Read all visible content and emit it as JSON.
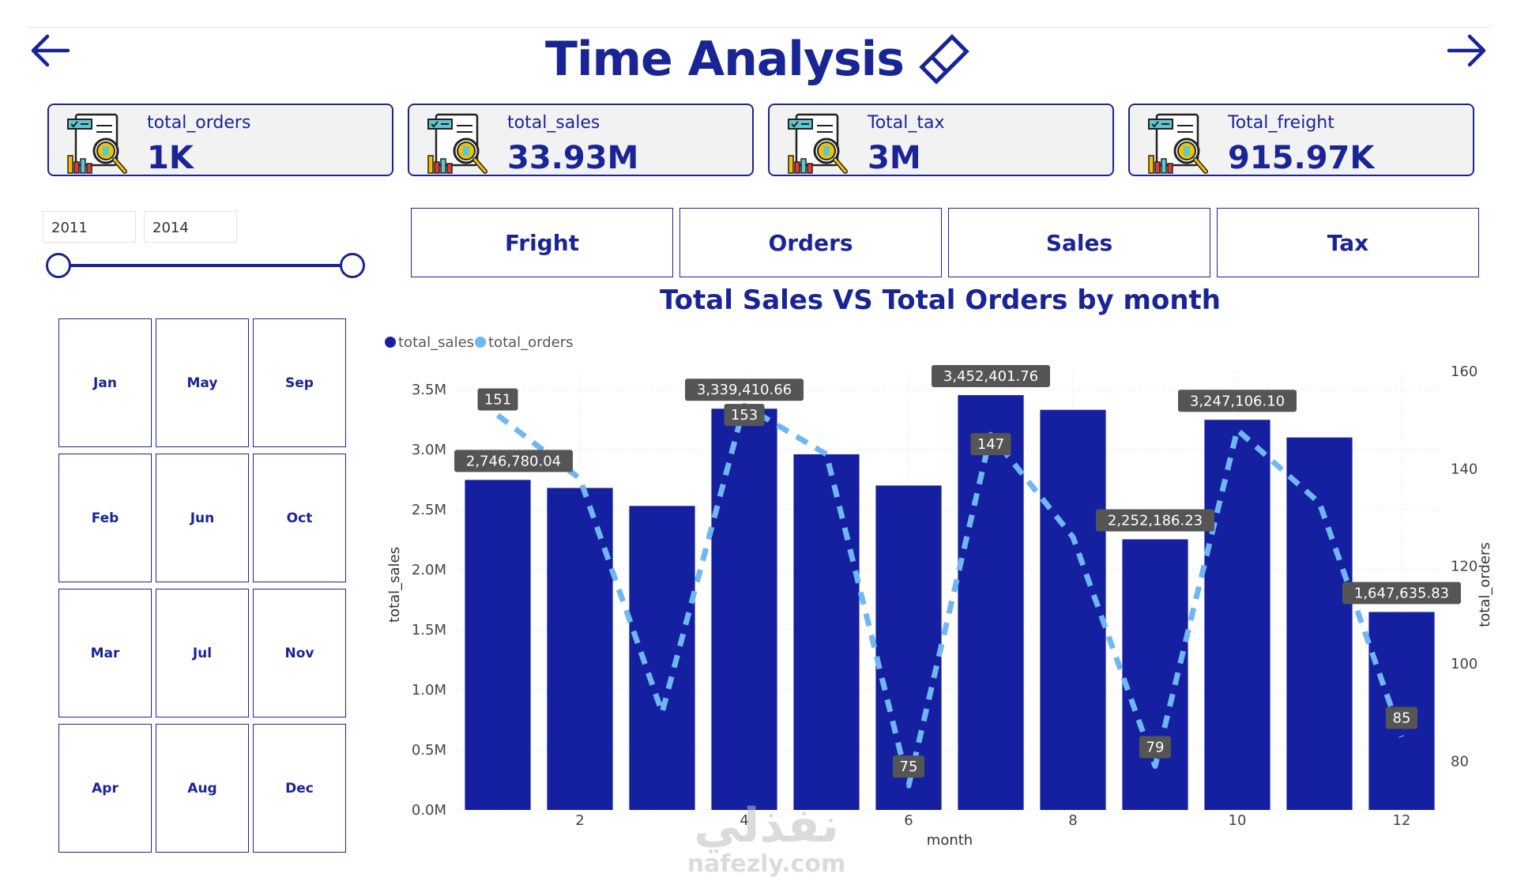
{
  "header": {
    "title": "Time Analysis",
    "back_icon": "arrow-left-icon",
    "forward_icon": "arrow-right-icon",
    "title_icon": "eraser-icon"
  },
  "kpis": [
    {
      "label": "total_orders",
      "value": "1K"
    },
    {
      "label": "total_sales",
      "value": "33.93M"
    },
    {
      "label": "Total_tax",
      "value": "3M"
    },
    {
      "label": "Total_freight",
      "value": "915.97K"
    }
  ],
  "year_slicer": {
    "start": "2011",
    "end": "2014"
  },
  "months": [
    "Jan",
    "May",
    "Sep",
    "Feb",
    "Jun",
    "Oct",
    "Mar",
    "Jul",
    "Nov",
    "Apr",
    "Aug",
    "Dec"
  ],
  "tabs": [
    "Fright",
    "Orders",
    "Sales",
    "Tax"
  ],
  "watermark": {
    "arabic": "نفذلي",
    "url": "nafezly.com"
  },
  "colors": {
    "primary": "#1a2595",
    "bar": "#1420a0",
    "line": "#6fb6f2",
    "label_bg": "#555555"
  },
  "chart_data": {
    "type": "bar",
    "title": "Total Sales VS Total Orders by month",
    "xlabel": "month",
    "ylabel": "total_sales",
    "y2label": "total_orders",
    "legend": [
      "total_sales",
      "total_orders"
    ],
    "legend_position": "top-left",
    "x": [
      1,
      2,
      3,
      4,
      5,
      6,
      7,
      8,
      9,
      10,
      11,
      12
    ],
    "x_ticks": [
      "2",
      "4",
      "6",
      "8",
      "10",
      "12"
    ],
    "y_ticks": [
      "0.0M",
      "0.5M",
      "1.0M",
      "1.5M",
      "2.0M",
      "2.5M",
      "3.0M",
      "3.5M"
    ],
    "y2_ticks": [
      "80",
      "100",
      "120",
      "140",
      "160"
    ],
    "ylim": [
      0,
      3650000
    ],
    "y2lim": [
      70,
      160
    ],
    "grid": true,
    "series": [
      {
        "name": "total_sales",
        "type": "bar",
        "axis": "left",
        "values": [
          2746780.04,
          2680000,
          2530000,
          3339410.66,
          2960000,
          2700000,
          3452401.76,
          3330000,
          2252186.23,
          3247106.1,
          3100000,
          1647635.83
        ],
        "labels": [
          "2,746,780.04",
          "",
          "",
          "3,339,410.66",
          "",
          "",
          "3,452,401.76",
          "",
          "2,252,186.23",
          "3,247,106.10",
          "",
          "1,647,635.83"
        ]
      },
      {
        "name": "total_orders",
        "type": "line",
        "axis": "right",
        "values": [
          151,
          138,
          90,
          153,
          143,
          75,
          147,
          126,
          79,
          148,
          133,
          85
        ],
        "labels": [
          "151",
          "",
          "",
          "153",
          "",
          "75",
          "147",
          "",
          "79",
          "",
          "",
          "85"
        ]
      }
    ]
  }
}
